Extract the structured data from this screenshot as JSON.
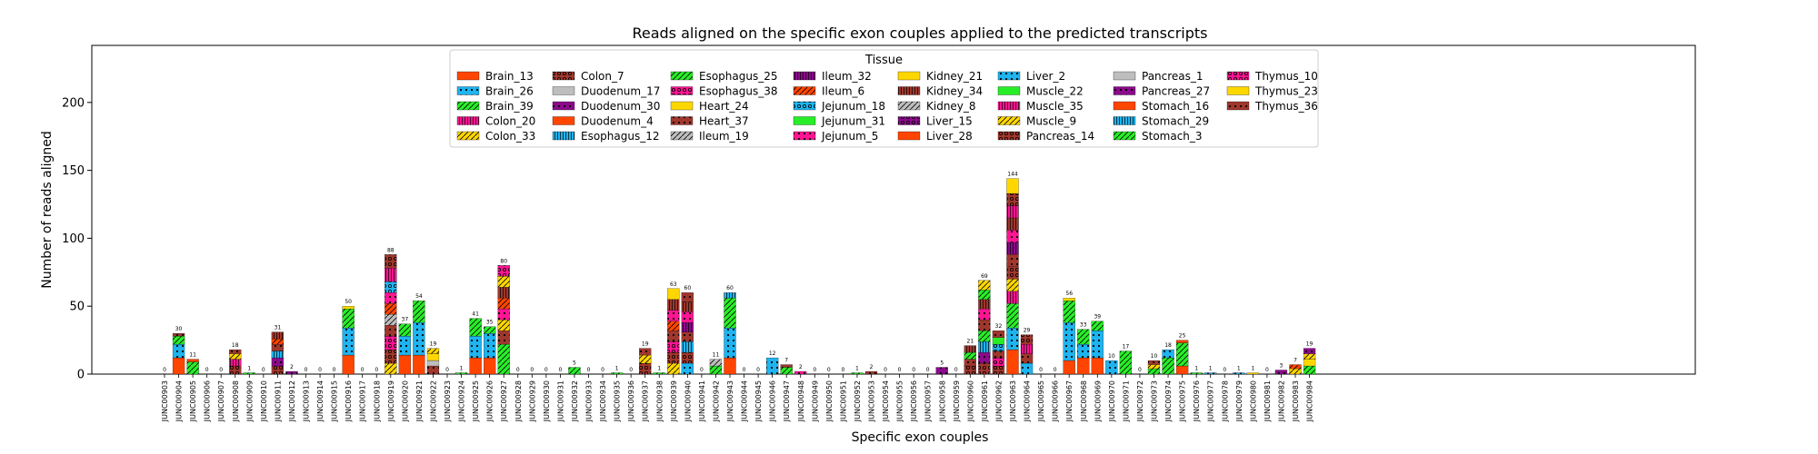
{
  "chart_data": {
    "type": "bar",
    "title": "Reads aligned on the specific exon couples applied to the predicted transcripts",
    "xlabel": "Specific exon couples",
    "ylabel": "Number of reads aligned",
    "ylim": [
      0,
      242
    ],
    "yticks": [
      0,
      50,
      100,
      150,
      200
    ],
    "stacked": true,
    "grid": false,
    "legend": {
      "title": "Tissue",
      "placement": "top-center",
      "columns": 8
    },
    "series": [
      {
        "name": "Brain_13",
        "color": "#ff4500",
        "hatch": ""
      },
      {
        "name": "Brain_26",
        "color": "#1eb4f0",
        "hatch": "dot"
      },
      {
        "name": "Brain_39",
        "color": "#28ee28",
        "hatch": "slash"
      },
      {
        "name": "Colon_20",
        "color": "#ff1493",
        "hatch": "bar"
      },
      {
        "name": "Colon_33",
        "color": "#ffd700",
        "hatch": "slash"
      },
      {
        "name": "Colon_7",
        "color": "#a0372d",
        "hatch": "ring"
      },
      {
        "name": "Duodenum_17",
        "color": "#bebebe",
        "hatch": ""
      },
      {
        "name": "Duodenum_30",
        "color": "#8b0a8b",
        "hatch": "dot"
      },
      {
        "name": "Duodenum_4",
        "color": "#ff4500",
        "hatch": ""
      },
      {
        "name": "Esophagus_12",
        "color": "#1eb4f0",
        "hatch": "bar"
      },
      {
        "name": "Esophagus_25",
        "color": "#28ee28",
        "hatch": "slash"
      },
      {
        "name": "Esophagus_38",
        "color": "#ff1493",
        "hatch": "ring"
      },
      {
        "name": "Heart_24",
        "color": "#ffd700",
        "hatch": ""
      },
      {
        "name": "Heart_37",
        "color": "#a0372d",
        "hatch": "dot"
      },
      {
        "name": "Ileum_19",
        "color": "#bebebe",
        "hatch": "slash"
      },
      {
        "name": "Ileum_32",
        "color": "#8b0a8b",
        "hatch": "bar"
      },
      {
        "name": "Ileum_6",
        "color": "#ff4500",
        "hatch": "slash"
      },
      {
        "name": "Jejunum_18",
        "color": "#1eb4f0",
        "hatch": "ring"
      },
      {
        "name": "Jejunum_31",
        "color": "#28ee28",
        "hatch": ""
      },
      {
        "name": "Jejunum_5",
        "color": "#ff1493",
        "hatch": "dot"
      },
      {
        "name": "Kidney_21",
        "color": "#ffd700",
        "hatch": ""
      },
      {
        "name": "Kidney_34",
        "color": "#a0372d",
        "hatch": "bar"
      },
      {
        "name": "Kidney_8",
        "color": "#bebebe",
        "hatch": "slash"
      },
      {
        "name": "Liver_15",
        "color": "#8b0a8b",
        "hatch": "ring"
      },
      {
        "name": "Liver_28",
        "color": "#ff4500",
        "hatch": ""
      },
      {
        "name": "Liver_2",
        "color": "#1eb4f0",
        "hatch": "dot"
      },
      {
        "name": "Muscle_22",
        "color": "#28ee28",
        "hatch": ""
      },
      {
        "name": "Muscle_35",
        "color": "#ff1493",
        "hatch": "bar"
      },
      {
        "name": "Muscle_9",
        "color": "#ffd700",
        "hatch": "slash"
      },
      {
        "name": "Pancreas_14",
        "color": "#a0372d",
        "hatch": "ring"
      },
      {
        "name": "Pancreas_1",
        "color": "#bebebe",
        "hatch": ""
      },
      {
        "name": "Pancreas_27",
        "color": "#8b0a8b",
        "hatch": "dot"
      },
      {
        "name": "Stomach_16",
        "color": "#ff4500",
        "hatch": ""
      },
      {
        "name": "Stomach_29",
        "color": "#1eb4f0",
        "hatch": "bar"
      },
      {
        "name": "Stomach_3",
        "color": "#28ee28",
        "hatch": "slash"
      },
      {
        "name": "Thymus_10",
        "color": "#ff1493",
        "hatch": "ring"
      },
      {
        "name": "Thymus_23",
        "color": "#ffd700",
        "hatch": ""
      },
      {
        "name": "Thymus_36",
        "color": "#a0372d",
        "hatch": "dot"
      }
    ],
    "categories": [
      "JUNC00903",
      "JUNC00904",
      "JUNC00905",
      "JUNC00906",
      "JUNC00907",
      "JUNC00908",
      "JUNC00909",
      "JUNC00910",
      "JUNC00911",
      "JUNC00912",
      "JUNC00913",
      "JUNC00914",
      "JUNC00915",
      "JUNC00916",
      "JUNC00917",
      "JUNC00918",
      "JUNC00919",
      "JUNC00920",
      "JUNC00921",
      "JUNC00922",
      "JUNC00923",
      "JUNC00924",
      "JUNC00925",
      "JUNC00926",
      "JUNC00927",
      "JUNC00928",
      "JUNC00929",
      "JUNC00930",
      "JUNC00931",
      "JUNC00932",
      "JUNC00933",
      "JUNC00934",
      "JUNC00935",
      "JUNC00936",
      "JUNC00937",
      "JUNC00938",
      "JUNC00939",
      "JUNC00940",
      "JUNC00941",
      "JUNC00942",
      "JUNC00943",
      "JUNC00944",
      "JUNC00945",
      "JUNC00946",
      "JUNC00947",
      "JUNC00948",
      "JUNC00949",
      "JUNC00950",
      "JUNC00951",
      "JUNC00952",
      "JUNC00953",
      "JUNC00954",
      "JUNC00955",
      "JUNC00956",
      "JUNC00957",
      "JUNC00958",
      "JUNC00959",
      "JUNC00960",
      "JUNC00961",
      "JUNC00962",
      "JUNC00963",
      "JUNC00964",
      "JUNC00965",
      "JUNC00966",
      "JUNC00967",
      "JUNC00968",
      "JUNC00969",
      "JUNC00970",
      "JUNC00971",
      "JUNC00972",
      "JUNC00973",
      "JUNC00974",
      "JUNC00975",
      "JUNC00976",
      "JUNC00977",
      "JUNC00978",
      "JUNC00979",
      "JUNC00980",
      "JUNC00981",
      "JUNC00982",
      "JUNC00983",
      "JUNC00984"
    ],
    "totals": [
      0,
      30,
      11,
      0,
      0,
      18,
      1,
      0,
      31,
      2,
      0,
      0,
      0,
      50,
      0,
      0,
      88,
      37,
      54,
      19,
      0,
      1,
      41,
      35,
      80,
      0,
      0,
      0,
      0,
      5,
      0,
      0,
      1,
      0,
      19,
      1,
      63,
      60,
      0,
      11,
      60,
      0,
      0,
      12,
      7,
      2,
      0,
      0,
      0,
      1,
      2,
      0,
      0,
      0,
      0,
      5,
      0,
      21,
      69,
      32,
      144,
      29,
      0,
      0,
      56,
      33,
      39,
      10,
      17,
      0,
      10,
      18,
      25,
      1,
      1,
      0,
      1,
      1,
      0,
      3,
      7,
      19
    ],
    "segments": [
      [],
      [
        [
          "Brain_13",
          12
        ],
        [
          "Brain_26",
          10
        ],
        [
          "Brain_39",
          6
        ],
        [
          "Thymus_36",
          2
        ]
      ],
      [
        [
          "Brain_39",
          9
        ],
        [
          "Brain_13",
          2
        ]
      ],
      [],
      [],
      [
        [
          "Colon_7",
          6
        ],
        [
          "Colon_20",
          5
        ],
        [
          "Colon_33",
          4
        ],
        [
          "Heart_37",
          3
        ]
      ],
      [
        [
          "Stomach_3",
          1
        ]
      ],
      [],
      [
        [
          "Colon_7",
          6
        ],
        [
          "Duodenum_30",
          6
        ],
        [
          "Esophagus_12",
          5
        ],
        [
          "Heart_37",
          5
        ],
        [
          "Ileum_6",
          4
        ],
        [
          "Kidney_34",
          5
        ]
      ],
      [
        [
          "Duodenum_30",
          2
        ]
      ],
      [],
      [],
      [],
      [
        [
          "Brain_13",
          14
        ],
        [
          "Brain_26",
          20
        ],
        [
          "Brain_39",
          14
        ],
        [
          "Thymus_23",
          2
        ]
      ],
      [],
      [],
      [
        [
          "Colon_33",
          8
        ],
        [
          "Colon_7",
          10
        ],
        [
          "Esophagus_38",
          10
        ],
        [
          "Heart_37",
          8
        ],
        [
          "Kidney_8",
          8
        ],
        [
          "Ileum_6",
          8
        ],
        [
          "Jejunum_5",
          8
        ],
        [
          "Jejunum_18",
          8
        ],
        [
          "Muscle_35",
          10
        ],
        [
          "Pancreas_14",
          10
        ]
      ],
      [
        [
          "Brain_13",
          14
        ],
        [
          "Brain_26",
          14
        ],
        [
          "Brain_39",
          9
        ]
      ],
      [
        [
          "Brain_13",
          14
        ],
        [
          "Brain_26",
          24
        ],
        [
          "Brain_39",
          16
        ]
      ],
      [
        [
          "Heart_37",
          6
        ],
        [
          "Pancreas_1",
          4
        ],
        [
          "Thymus_23",
          5
        ],
        [
          "Colon_33",
          4
        ]
      ],
      [],
      [
        [
          "Stomach_3",
          1
        ]
      ],
      [
        [
          "Brain_13",
          12
        ],
        [
          "Brain_26",
          16
        ],
        [
          "Brain_39",
          13
        ]
      ],
      [
        [
          "Brain_13",
          12
        ],
        [
          "Brain_26",
          18
        ],
        [
          "Brain_39",
          5
        ]
      ],
      [
        [
          "Stomach_3",
          22
        ],
        [
          "Heart_37",
          10
        ],
        [
          "Colon_33",
          8
        ],
        [
          "Jejunum_5",
          8
        ],
        [
          "Ileum_6",
          8
        ],
        [
          "Kidney_34",
          8
        ],
        [
          "Muscle_9",
          8
        ],
        [
          "Thymus_10",
          8
        ]
      ],
      [],
      [],
      [],
      [],
      [
        [
          "Brain_39",
          5
        ]
      ],
      [],
      [],
      [
        [
          "Stomach_3",
          1
        ]
      ],
      [],
      [
        [
          "Colon_7",
          8
        ],
        [
          "Muscle_9",
          6
        ],
        [
          "Heart_37",
          5
        ]
      ],
      [
        [
          "Stomach_3",
          1
        ]
      ],
      [
        [
          "Colon_33",
          8
        ],
        [
          "Colon_7",
          8
        ],
        [
          "Esophagus_38",
          8
        ],
        [
          "Heart_37",
          8
        ],
        [
          "Ileum_6",
          7
        ],
        [
          "Jejunum_5",
          8
        ],
        [
          "Kidney_34",
          8
        ],
        [
          "Thymus_23",
          8
        ]
      ],
      [
        [
          "Brain_26",
          8
        ],
        [
          "Colon_7",
          8
        ],
        [
          "Esophagus_12",
          8
        ],
        [
          "Heart_37",
          7
        ],
        [
          "Ileum_32",
          7
        ],
        [
          "Jejunum_5",
          8
        ],
        [
          "Kidney_34",
          7
        ],
        [
          "Thymus_36",
          7
        ]
      ],
      [],
      [
        [
          "Brain_39",
          6
        ],
        [
          "Kidney_8",
          5
        ]
      ],
      [
        [
          "Brain_13",
          12
        ],
        [
          "Brain_26",
          22
        ],
        [
          "Brain_39",
          22
        ],
        [
          "Esophagus_12",
          4
        ]
      ],
      [],
      [],
      [
        [
          "Brain_26",
          12
        ]
      ],
      [
        [
          "Brain_39",
          5
        ],
        [
          "Heart_37",
          2
        ]
      ],
      [
        [
          "Jejunum_5",
          2
        ]
      ],
      [],
      [],
      [],
      [
        [
          "Stomach_3",
          1
        ]
      ],
      [
        [
          "Heart_37",
          2
        ]
      ],
      [],
      [],
      [],
      [],
      [
        [
          "Duodenum_30",
          5
        ]
      ],
      [],
      [
        [
          "Colon_7",
          6
        ],
        [
          "Heart_37",
          5
        ],
        [
          "Stomach_3",
          5
        ],
        [
          "Kidney_34",
          5
        ]
      ],
      [
        [
          "Colon_7",
          8
        ],
        [
          "Duodenum_30",
          8
        ],
        [
          "Esophagus_12",
          8
        ],
        [
          "Esophagus_25",
          8
        ],
        [
          "Heart_37",
          8
        ],
        [
          "Jejunum_5",
          8
        ],
        [
          "Kidney_34",
          7
        ],
        [
          "Brain_39",
          7
        ],
        [
          "Muscle_9",
          7
        ]
      ],
      [
        [
          "Colon_7",
          6
        ],
        [
          "Esophagus_38",
          6
        ],
        [
          "Heart_37",
          5
        ],
        [
          "Jejunum_18",
          5
        ],
        [
          "Muscle_22",
          5
        ],
        [
          "Thymus_36",
          5
        ]
      ],
      [
        [
          "Brain_13",
          18
        ],
        [
          "Brain_26",
          16
        ],
        [
          "Brain_39",
          18
        ],
        [
          "Colon_20",
          9
        ],
        [
          "Colon_33",
          9
        ],
        [
          "Colon_7",
          9
        ],
        [
          "Heart_37",
          9
        ],
        [
          "Ileum_32",
          9
        ],
        [
          "Jejunum_5",
          9
        ],
        [
          "Kidney_34",
          9
        ],
        [
          "Muscle_35",
          9
        ],
        [
          "Pancreas_14",
          9
        ],
        [
          "Thymus_23",
          11
        ]
      ],
      [
        [
          "Brain_26",
          8
        ],
        [
          "Heart_37",
          7
        ],
        [
          "Colon_20",
          7
        ],
        [
          "Pancreas_14",
          7
        ]
      ],
      [],
      [],
      [
        [
          "Brain_13",
          10
        ],
        [
          "Brain_26",
          28
        ],
        [
          "Brain_39",
          16
        ],
        [
          "Thymus_23",
          2
        ]
      ],
      [
        [
          "Brain_13",
          12
        ],
        [
          "Brain_26",
          10
        ],
        [
          "Brain_39",
          11
        ]
      ],
      [
        [
          "Brain_13",
          12
        ],
        [
          "Brain_26",
          20
        ],
        [
          "Brain_39",
          7
        ]
      ],
      [
        [
          "Brain_26",
          10
        ]
      ],
      [
        [
          "Stomach_3",
          17
        ]
      ],
      [],
      [
        [
          "Brain_39",
          4
        ],
        [
          "Colon_33",
          3
        ],
        [
          "Thymus_36",
          3
        ]
      ],
      [
        [
          "Brain_39",
          12
        ],
        [
          "Brain_26",
          6
        ]
      ],
      [
        [
          "Brain_13",
          6
        ],
        [
          "Brain_39",
          17
        ],
        [
          "Duodenum_4",
          2
        ]
      ],
      [
        [
          "Stomach_3",
          1
        ]
      ],
      [
        [
          "Brain_26",
          1
        ]
      ],
      [],
      [
        [
          "Brain_26",
          1
        ]
      ],
      [
        [
          "Thymus_23",
          1
        ]
      ],
      [],
      [
        [
          "Duodenum_30",
          3
        ]
      ],
      [
        [
          "Colon_33",
          4
        ],
        [
          "Ileum_6",
          3
        ]
      ],
      [
        [
          "Brain_39",
          6
        ],
        [
          "Thymus_23",
          5
        ],
        [
          "Colon_33",
          4
        ],
        [
          "Duodenum_30",
          4
        ]
      ]
    ]
  }
}
